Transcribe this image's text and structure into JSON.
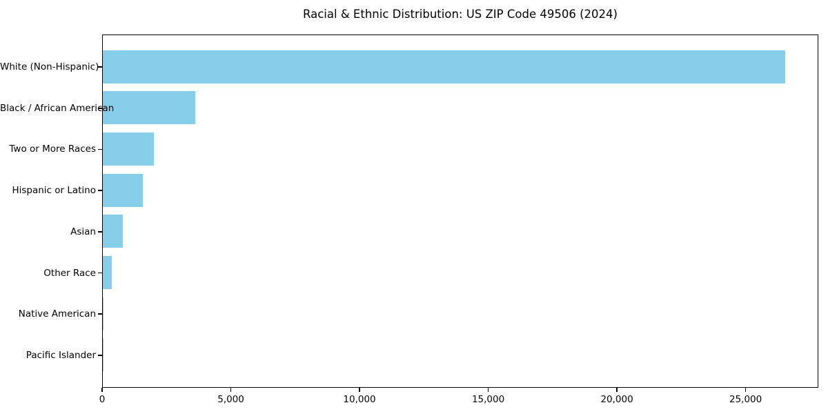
{
  "chart_data": {
    "type": "bar",
    "orientation": "horizontal",
    "title": "Racial & Ethnic Distribution: US ZIP Code 49506 (2024)",
    "categories": [
      "White (Non-Hispanic)",
      "Black / African American",
      "Two or More Races",
      "Hispanic or Latino",
      "Asian",
      "Other Race",
      "Native American",
      "Pacific Islander"
    ],
    "values": [
      26500,
      3590,
      1980,
      1550,
      780,
      350,
      30,
      10
    ],
    "bar_color": "#87CEEB",
    "xlabel": "",
    "ylabel": "",
    "xlim": [
      0,
      27825
    ],
    "xticks": [
      {
        "value": 0,
        "label": "0"
      },
      {
        "value": 5000,
        "label": "5,000"
      },
      {
        "value": 10000,
        "label": "10,000"
      },
      {
        "value": 15000,
        "label": "15,000"
      },
      {
        "value": 20000,
        "label": "20,000"
      },
      {
        "value": 25000,
        "label": "25,000"
      }
    ],
    "grid": false,
    "legend": false
  }
}
